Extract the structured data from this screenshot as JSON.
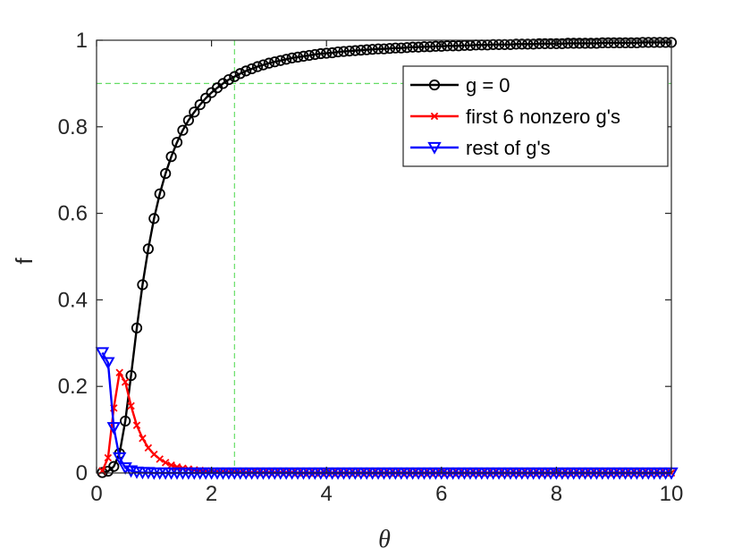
{
  "chart_data": {
    "type": "line",
    "xlabel": "θ",
    "ylabel": "f",
    "xlim": [
      0,
      10
    ],
    "ylim": [
      0,
      1
    ],
    "xticks": [
      0,
      2,
      4,
      6,
      8,
      10
    ],
    "yticks": [
      0,
      0.2,
      0.4,
      0.6,
      0.8,
      1
    ],
    "xtick_labels": [
      "0",
      "2",
      "4",
      "6",
      "8",
      "10"
    ],
    "ytick_labels": [
      "0",
      "0.2",
      "0.4",
      "0.6",
      "0.8",
      "1"
    ],
    "grid": false,
    "legend_position": "top-right",
    "reference_lines": [
      {
        "orientation": "vertical",
        "value": 2.4,
        "color": "#66dd66",
        "style": "dashed"
      },
      {
        "orientation": "horizontal",
        "value": 0.9,
        "color": "#66dd66",
        "style": "dashed"
      }
    ],
    "series": [
      {
        "name": "g = 0",
        "color": "#000000",
        "marker": "circle",
        "x": [
          0.1,
          0.2,
          0.3,
          0.4,
          0.5,
          0.6,
          0.7,
          0.8,
          0.9,
          1.0,
          1.1,
          1.2,
          1.3,
          1.4,
          1.5,
          1.6,
          1.7,
          1.8,
          1.9,
          2.0,
          2.1,
          2.2,
          2.3,
          2.4,
          2.5,
          2.6,
          2.7,
          2.8,
          2.9,
          3.0,
          3.1,
          3.2,
          3.3,
          3.4,
          3.5,
          3.6,
          3.7,
          3.8,
          3.9,
          4.0,
          4.1,
          4.2,
          4.3,
          4.4,
          4.5,
          4.6,
          4.7,
          4.8,
          4.9,
          5.0,
          5.1,
          5.2,
          5.3,
          5.4,
          5.5,
          5.6,
          5.7,
          5.8,
          5.9,
          6.0,
          6.1,
          6.2,
          6.3,
          6.4,
          6.5,
          6.6,
          6.7,
          6.8,
          6.9,
          7.0,
          7.1,
          7.2,
          7.3,
          7.4,
          7.5,
          7.6,
          7.7,
          7.8,
          7.9,
          8.0,
          8.1,
          8.2,
          8.3,
          8.4,
          8.5,
          8.6,
          8.7,
          8.8,
          8.9,
          9.0,
          9.1,
          9.2,
          9.3,
          9.4,
          9.5,
          9.6,
          9.7,
          9.8,
          9.9,
          10.0
        ],
        "y": [
          0.001,
          0.004,
          0.015,
          0.045,
          0.12,
          0.225,
          0.335,
          0.435,
          0.518,
          0.588,
          0.645,
          0.692,
          0.731,
          0.764,
          0.792,
          0.815,
          0.834,
          0.851,
          0.866,
          0.879,
          0.89,
          0.9,
          0.909,
          0.916,
          0.923,
          0.929,
          0.934,
          0.939,
          0.943,
          0.947,
          0.95,
          0.953,
          0.956,
          0.959,
          0.961,
          0.963,
          0.965,
          0.967,
          0.969,
          0.97,
          0.971,
          0.973,
          0.974,
          0.975,
          0.976,
          0.977,
          0.978,
          0.979,
          0.98,
          0.98,
          0.981,
          0.982,
          0.982,
          0.983,
          0.984,
          0.984,
          0.985,
          0.985,
          0.986,
          0.986,
          0.987,
          0.987,
          0.987,
          0.988,
          0.988,
          0.989,
          0.989,
          0.989,
          0.99,
          0.99,
          0.99,
          0.99,
          0.991,
          0.991,
          0.991,
          0.991,
          0.992,
          0.992,
          0.992,
          0.992,
          0.992,
          0.993,
          0.993,
          0.993,
          0.993,
          0.993,
          0.993,
          0.994,
          0.994,
          0.994,
          0.994,
          0.994,
          0.994,
          0.994,
          0.995,
          0.995,
          0.995,
          0.995,
          0.995,
          0.995
        ]
      },
      {
        "name": "first 6 nonzero g's",
        "color": "#ff0000",
        "marker": "x",
        "x": [
          0.1,
          0.2,
          0.3,
          0.4,
          0.5,
          0.6,
          0.7,
          0.8,
          0.9,
          1.0,
          1.1,
          1.2,
          1.3,
          1.4,
          1.5,
          1.6,
          1.7,
          1.8,
          1.9,
          2.0,
          2.1,
          2.2,
          2.3,
          2.4,
          2.5,
          2.6,
          2.7,
          2.8,
          2.9,
          3.0,
          3.1,
          3.2,
          3.3,
          3.4,
          3.5,
          3.6,
          3.7,
          3.8,
          3.9,
          4.0,
          4.1,
          4.2,
          4.3,
          4.4,
          4.5,
          4.6,
          4.7,
          4.8,
          4.9,
          5.0,
          5.1,
          5.2,
          5.3,
          5.4,
          5.5,
          5.6,
          5.7,
          5.8,
          5.9,
          6.0,
          6.1,
          6.2,
          6.3,
          6.4,
          6.5,
          6.6,
          6.7,
          6.8,
          6.9,
          7.0,
          7.1,
          7.2,
          7.3,
          7.4,
          7.5,
          7.6,
          7.7,
          7.8,
          7.9,
          8.0,
          8.1,
          8.2,
          8.3,
          8.4,
          8.5,
          8.6,
          8.7,
          8.8,
          8.9,
          9.0,
          9.1,
          9.2,
          9.3,
          9.4,
          9.5,
          9.6,
          9.7,
          9.8,
          9.9,
          10.0
        ],
        "y": [
          0.005,
          0.035,
          0.15,
          0.232,
          0.21,
          0.155,
          0.11,
          0.08,
          0.058,
          0.043,
          0.032,
          0.024,
          0.018,
          0.014,
          0.011,
          0.009,
          0.007,
          0.006,
          0.005,
          0.004,
          0.003,
          0.003,
          0.002,
          0.002,
          0.002,
          0.001,
          0.001,
          0.001,
          0.001,
          0.001,
          0.001,
          0.001,
          0.001,
          0.001,
          0.0,
          0.0,
          0.0,
          0.0,
          0.0,
          0.0,
          0.0,
          0.0,
          0.0,
          0.0,
          0.0,
          0.0,
          0.0,
          0.0,
          0.0,
          0.0,
          0.0,
          0.0,
          0.0,
          0.0,
          0.0,
          0.0,
          0.0,
          0.0,
          0.0,
          0.0,
          0.0,
          0.0,
          0.0,
          0.0,
          0.0,
          0.0,
          0.0,
          0.0,
          0.0,
          0.0,
          0.0,
          0.0,
          0.0,
          0.0,
          0.0,
          0.0,
          0.0,
          0.0,
          0.0,
          0.0,
          0.0,
          0.0,
          0.0,
          0.0,
          0.0,
          0.0,
          0.0,
          0.0,
          0.0,
          0.0,
          0.0,
          0.0,
          0.0,
          0.0,
          0.0,
          0.0,
          0.0,
          0.0,
          0.0,
          0.0
        ]
      },
      {
        "name": "rest of g's",
        "color": "#0000ff",
        "marker": "triangle-down",
        "x": [
          0.1,
          0.2,
          0.3,
          0.4,
          0.5,
          0.6,
          0.7,
          0.8,
          0.9,
          1.0,
          1.1,
          1.2,
          1.3,
          1.4,
          1.5,
          1.6,
          1.7,
          1.8,
          1.9,
          2.0,
          2.1,
          2.2,
          2.3,
          2.4,
          2.5,
          2.6,
          2.7,
          2.8,
          2.9,
          3.0,
          3.1,
          3.2,
          3.3,
          3.4,
          3.5,
          3.6,
          3.7,
          3.8,
          3.9,
          4.0,
          4.1,
          4.2,
          4.3,
          4.4,
          4.5,
          4.6,
          4.7,
          4.8,
          4.9,
          5.0,
          5.1,
          5.2,
          5.3,
          5.4,
          5.5,
          5.6,
          5.7,
          5.8,
          5.9,
          6.0,
          6.1,
          6.2,
          6.3,
          6.4,
          6.5,
          6.6,
          6.7,
          6.8,
          6.9,
          7.0,
          7.1,
          7.2,
          7.3,
          7.4,
          7.5,
          7.6,
          7.7,
          7.8,
          7.9,
          8.0,
          8.1,
          8.2,
          8.3,
          8.4,
          8.5,
          8.6,
          8.7,
          8.8,
          8.9,
          9.0,
          9.1,
          9.2,
          9.3,
          9.4,
          9.5,
          9.6,
          9.7,
          9.8,
          9.9,
          10.0
        ],
        "y": [
          0.278,
          0.255,
          0.105,
          0.035,
          0.012,
          0.005,
          0.002,
          0.001,
          0.001,
          0.0,
          0.0,
          0.0,
          0.0,
          0.0,
          0.0,
          0.0,
          0.0,
          0.0,
          0.0,
          0.0,
          0.0,
          0.0,
          0.0,
          0.0,
          0.0,
          0.0,
          0.0,
          0.0,
          0.0,
          0.0,
          0.0,
          0.0,
          0.0,
          0.0,
          0.0,
          0.0,
          0.0,
          0.0,
          0.0,
          0.0,
          0.0,
          0.0,
          0.0,
          0.0,
          0.0,
          0.0,
          0.0,
          0.0,
          0.0,
          0.0,
          0.0,
          0.0,
          0.0,
          0.0,
          0.0,
          0.0,
          0.0,
          0.0,
          0.0,
          0.0,
          0.0,
          0.0,
          0.0,
          0.0,
          0.0,
          0.0,
          0.0,
          0.0,
          0.0,
          0.0,
          0.0,
          0.0,
          0.0,
          0.0,
          0.0,
          0.0,
          0.0,
          0.0,
          0.0,
          0.0,
          0.0,
          0.0,
          0.0,
          0.0,
          0.0,
          0.0,
          0.0,
          0.0,
          0.0,
          0.0,
          0.0,
          0.0,
          0.0,
          0.0,
          0.0,
          0.0,
          0.0,
          0.0,
          0.0,
          0.0
        ]
      }
    ]
  }
}
